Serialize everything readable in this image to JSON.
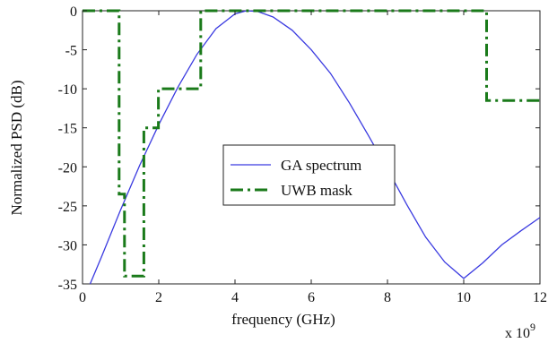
{
  "chart_data": {
    "type": "line",
    "title": "",
    "xlabel": "frequency (GHz)",
    "ylabel": "Normalized PSD (dB)",
    "xlim": [
      0,
      12
    ],
    "ylim": [
      -35,
      0
    ],
    "x_ticks": [
      0,
      2,
      4,
      6,
      8,
      10,
      12
    ],
    "y_ticks": [
      0,
      -5,
      -10,
      -15,
      -20,
      -25,
      -30,
      -35
    ],
    "x_tick_labels": [
      "0",
      "2",
      "4",
      "6",
      "8",
      "10",
      "12"
    ],
    "y_tick_labels": [
      "0",
      "-5",
      "-10",
      "-15",
      "-20",
      "-25",
      "-30",
      "-35"
    ],
    "x_multiplier_label": "x 10",
    "x_multiplier_exponent": "9",
    "grid": false,
    "legend_position": "center",
    "series": [
      {
        "name": "GA spectrum",
        "color": "#3a3ae0",
        "style": "solid",
        "x": [
          0.2,
          0.5,
          1.0,
          1.5,
          2.0,
          2.5,
          3.0,
          3.5,
          4.0,
          4.3,
          4.6,
          5.0,
          5.5,
          6.0,
          6.5,
          7.0,
          7.5,
          8.0,
          8.5,
          9.0,
          9.5,
          10.0,
          10.5,
          11.0,
          11.5,
          12.0
        ],
        "y": [
          -35.0,
          -31.5,
          -25.5,
          -19.8,
          -14.6,
          -9.8,
          -5.6,
          -2.3,
          -0.4,
          0.0,
          -0.1,
          -0.8,
          -2.5,
          -5.0,
          -8.0,
          -11.8,
          -16.0,
          -20.3,
          -24.8,
          -29.0,
          -32.2,
          -34.3,
          -32.3,
          -30.0,
          -28.2,
          -26.5
        ]
      },
      {
        "name": "UWB mask",
        "color": "#1a7a1a",
        "style": "dashdot",
        "x": [
          0.0,
          0.96,
          0.96,
          1.1,
          1.1,
          1.61,
          1.61,
          1.99,
          1.99,
          3.1,
          3.1,
          10.6,
          10.6,
          12.0
        ],
        "y": [
          0,
          0,
          -23.5,
          -23.5,
          -34,
          -34,
          -15,
          -15,
          -10,
          -10,
          0,
          0,
          -11.5,
          -11.5
        ]
      }
    ]
  }
}
